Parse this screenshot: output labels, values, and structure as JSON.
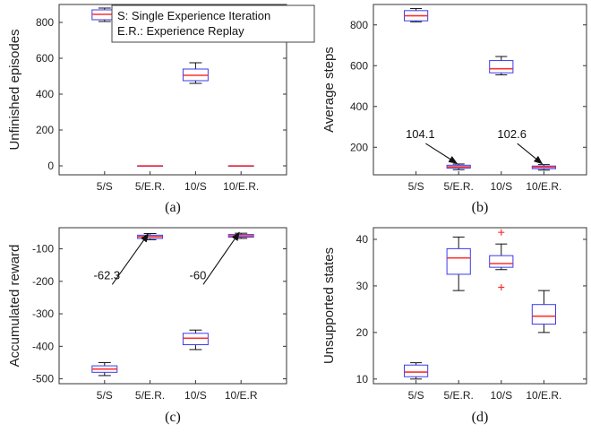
{
  "legend": {
    "entries": [
      "S: Single Experience Iteration",
      "E.R.: Experience Replay"
    ]
  },
  "chart_data": [
    {
      "type": "box",
      "caption": "(a)",
      "ylabel": "Unfinished episodes",
      "categories": [
        "5/S",
        "5/E.R.",
        "10/S",
        "10/E.R."
      ],
      "ylim": [
        -50,
        900
      ],
      "yticks": [
        0,
        200,
        400,
        600,
        800
      ],
      "boxes": [
        {
          "min": 805,
          "q1": 815,
          "median": 845,
          "q3": 870,
          "max": 880,
          "outliers": []
        },
        {
          "min": 0,
          "q1": 0,
          "median": 0,
          "q3": 0,
          "max": 0,
          "outliers": []
        },
        {
          "min": 460,
          "q1": 475,
          "median": 505,
          "q3": 540,
          "max": 575,
          "outliers": []
        },
        {
          "min": 0,
          "q1": 0,
          "median": 0,
          "q3": 0,
          "max": 0,
          "outliers": []
        }
      ],
      "annotations": []
    },
    {
      "type": "box",
      "caption": "(b)",
      "ylabel": "Average steps",
      "categories": [
        "5/S",
        "5/E.R.",
        "10/S",
        "10/E.R."
      ],
      "ylim": [
        65,
        900
      ],
      "yticks": [
        200,
        400,
        600,
        800
      ],
      "boxes": [
        {
          "min": 815,
          "q1": 820,
          "median": 845,
          "q3": 870,
          "max": 880,
          "outliers": []
        },
        {
          "min": 90,
          "q1": 98,
          "median": 104.1,
          "q3": 112,
          "max": 118,
          "outliers": []
        },
        {
          "min": 555,
          "q1": 565,
          "median": 585,
          "q3": 625,
          "max": 645,
          "outliers": []
        },
        {
          "min": 88,
          "q1": 95,
          "median": 102.6,
          "q3": 108,
          "max": 115,
          "outliers": []
        }
      ],
      "annotations": [
        {
          "text": "104.1",
          "target_index": 1,
          "target_value": 108,
          "text_value": 245,
          "text_offset": -0.9
        },
        {
          "text": "102.6",
          "target_index": 3,
          "target_value": 106,
          "text_value": 245,
          "text_offset": -0.75
        }
      ]
    },
    {
      "type": "box",
      "caption": "(c)",
      "ylabel": "Accumulated reward",
      "categories": [
        "5/S",
        "5/E.R.",
        "10/S",
        "10/E.R"
      ],
      "ylim": [
        -515,
        -35
      ],
      "yticks": [
        -500,
        -400,
        -300,
        -200,
        -100
      ],
      "boxes": [
        {
          "min": -490,
          "q1": -480,
          "median": -470,
          "q3": -460,
          "max": -450,
          "outliers": []
        },
        {
          "min": -72,
          "q1": -68,
          "median": -62.3,
          "q3": -58,
          "max": -53,
          "outliers": []
        },
        {
          "min": -410,
          "q1": -395,
          "median": -375,
          "q3": -360,
          "max": -350,
          "outliers": []
        },
        {
          "min": -68,
          "q1": -64,
          "median": -60,
          "q3": -56,
          "max": -52,
          "outliers": []
        }
      ],
      "annotations": [
        {
          "text": "-62.3",
          "target_index": 1,
          "target_value": -62,
          "text_value": -193,
          "text_offset": -0.95
        },
        {
          "text": "-60",
          "target_index": 3,
          "target_value": -58,
          "text_value": -193,
          "text_offset": -0.95
        }
      ]
    },
    {
      "type": "box",
      "caption": "(d)",
      "ylabel": "Unsupported states",
      "categories": [
        "5/S",
        "5/E.R.",
        "10/S",
        "10/E.R."
      ],
      "ylim": [
        9,
        42.5
      ],
      "yticks": [
        10,
        20,
        30,
        40
      ],
      "boxes": [
        {
          "min": 10,
          "q1": 10.5,
          "median": 11.5,
          "q3": 13,
          "max": 13.5,
          "outliers": []
        },
        {
          "min": 29,
          "q1": 32.5,
          "median": 36,
          "q3": 38,
          "max": 40.5,
          "outliers": []
        },
        {
          "min": 33.5,
          "q1": 34,
          "median": 34.8,
          "q3": 36.5,
          "max": 39,
          "outliers": [
            41.5,
            29.7
          ]
        },
        {
          "min": 20,
          "q1": 21.8,
          "median": 23.5,
          "q3": 26,
          "max": 29,
          "outliers": []
        }
      ],
      "annotations": []
    }
  ]
}
